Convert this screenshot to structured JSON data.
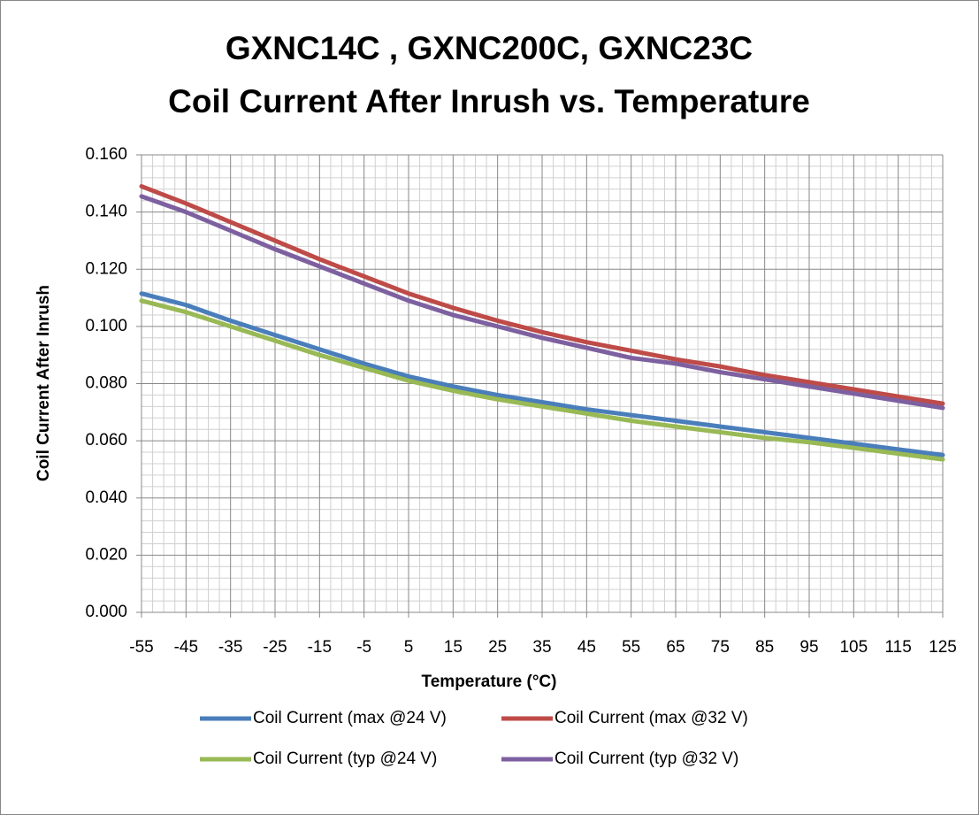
{
  "chart_data": {
    "type": "line",
    "title": [
      "GXNC14C , GXNC200C, GXNC23C",
      "Coil Current After Inrush vs. Temperature"
    ],
    "x_label": "Temperature (°C)",
    "y_label": "Coil Current After Inrush",
    "x": [
      -55,
      -45,
      -35,
      -25,
      -15,
      -5,
      5,
      15,
      25,
      35,
      45,
      55,
      65,
      75,
      85,
      95,
      105,
      115,
      125
    ],
    "xlim": [
      -55,
      125
    ],
    "xticks": [
      -55,
      -45,
      -35,
      -25,
      -15,
      -5,
      5,
      15,
      25,
      35,
      45,
      55,
      65,
      75,
      85,
      95,
      105,
      115,
      125
    ],
    "ylim": [
      0,
      0.16
    ],
    "yticks": [
      {
        "value": 0,
        "label": "0.000"
      },
      {
        "value": 0.02,
        "label": "0.020"
      },
      {
        "value": 0.04,
        "label": "0.040"
      },
      {
        "value": 0.06,
        "label": "0.060"
      },
      {
        "value": 0.08,
        "label": "0.080"
      },
      {
        "value": 0.1,
        "label": "0.100"
      },
      {
        "value": 0.12,
        "label": "0.120"
      },
      {
        "value": 0.14,
        "label": "0.140"
      },
      {
        "value": 0.16,
        "label": "0.160"
      }
    ],
    "grid": true,
    "legend": "bottom",
    "series": [
      {
        "name": "Coil Current (max @24 V)",
        "color": "#4a7ebb",
        "values": [
          0.1115,
          0.1075,
          0.102,
          0.097,
          0.092,
          0.087,
          0.0825,
          0.079,
          0.076,
          0.0735,
          0.071,
          0.069,
          0.067,
          0.065,
          0.063,
          0.061,
          0.059,
          0.057,
          0.055
        ]
      },
      {
        "name": "Coil Current (max @32 V)",
        "color": "#be4b48",
        "values": [
          0.149,
          0.143,
          0.1365,
          0.13,
          0.1235,
          0.1175,
          0.1115,
          0.1065,
          0.102,
          0.098,
          0.0945,
          0.0915,
          0.0885,
          0.086,
          0.083,
          0.0805,
          0.078,
          0.0755,
          0.073
        ]
      },
      {
        "name": "Coil Current (typ @24 V)",
        "color": "#98b954",
        "values": [
          0.109,
          0.105,
          0.1,
          0.095,
          0.09,
          0.0855,
          0.081,
          0.0775,
          0.0745,
          0.072,
          0.0695,
          0.067,
          0.065,
          0.063,
          0.061,
          0.0595,
          0.0575,
          0.0555,
          0.0535
        ]
      },
      {
        "name": "Coil Current (typ @32 V)",
        "color": "#7d60a0",
        "values": [
          0.1455,
          0.14,
          0.1335,
          0.127,
          0.121,
          0.115,
          0.109,
          0.104,
          0.1,
          0.096,
          0.0925,
          0.089,
          0.087,
          0.084,
          0.0815,
          0.079,
          0.0765,
          0.074,
          0.0715
        ]
      }
    ]
  }
}
